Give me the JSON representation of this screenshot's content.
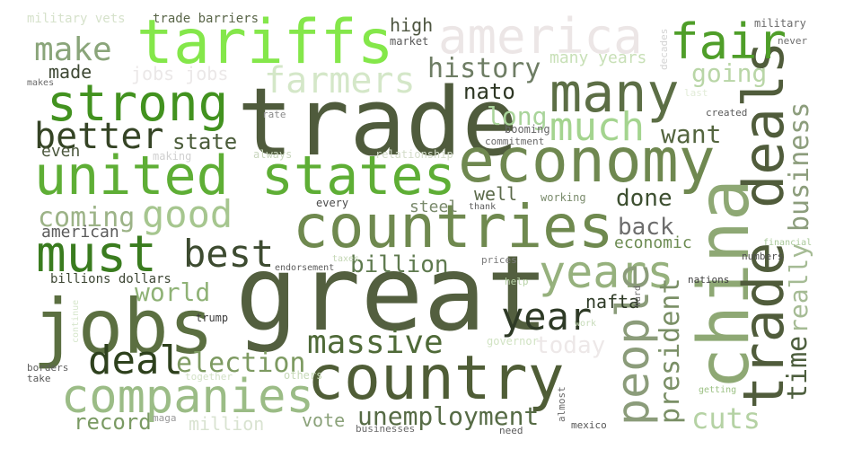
{
  "words": [
    {
      "text": "great",
      "color": "#535f3f"
    },
    {
      "text": "trade",
      "color": "#4f5b3c"
    },
    {
      "text": "country",
      "color": "#4f5d36"
    },
    {
      "text": "countries",
      "color": "#6f894f"
    },
    {
      "text": "economy",
      "color": "#6f8850"
    },
    {
      "text": "tariffs",
      "color": "#84e74a"
    },
    {
      "text": "united states",
      "color": "#5eae35"
    },
    {
      "text": "america",
      "color": "#ece6e6"
    },
    {
      "text": "jobs",
      "color": "#5b6f41"
    },
    {
      "text": "china",
      "color": "#8ea874"
    },
    {
      "text": "trade deals",
      "color": "#505c3b"
    },
    {
      "text": "many",
      "color": "#5c6e45"
    },
    {
      "text": "companies",
      "color": "#9bbc86"
    },
    {
      "text": "strong",
      "color": "#42921f"
    },
    {
      "text": "fair",
      "color": "#4f9e29"
    },
    {
      "text": "must",
      "color": "#3a7c1f"
    },
    {
      "text": "years",
      "color": "#96b17d"
    },
    {
      "text": "people",
      "color": "#8b9c7a"
    },
    {
      "text": "good",
      "color": "#a6c68f"
    },
    {
      "text": "much",
      "color": "#a4d48f"
    },
    {
      "text": "deal",
      "color": "#2e411d"
    },
    {
      "text": "best",
      "color": "#3d4b30"
    },
    {
      "text": "year",
      "color": "#2e3a26"
    },
    {
      "text": "massive",
      "color": "#4f6a38"
    },
    {
      "text": "farmers",
      "color": "#d4e7c8"
    },
    {
      "text": "better",
      "color": "#354425"
    },
    {
      "text": "make",
      "color": "#8aa57a"
    },
    {
      "text": "history",
      "color": "#6e7d64"
    },
    {
      "text": "business",
      "color": "#8c9d7c"
    },
    {
      "text": "president",
      "color": "#7a8f66"
    },
    {
      "text": "election",
      "color": "#7d9a61"
    },
    {
      "text": "unemployment",
      "color": "#566b45"
    },
    {
      "text": "time",
      "color": "#4d5e3e"
    },
    {
      "text": "really",
      "color": "#a5bb94"
    },
    {
      "text": "cuts",
      "color": "#b5d2a4"
    },
    {
      "text": "world",
      "color": "#8fb276"
    },
    {
      "text": "billion",
      "color": "#5f7a4f"
    },
    {
      "text": "coming",
      "color": "#9cb387"
    },
    {
      "text": "going",
      "color": "#b9d6a7"
    },
    {
      "text": "long",
      "color": "#a9d49a"
    },
    {
      "text": "want",
      "color": "#54653f"
    },
    {
      "text": "state",
      "color": "#4b5c3a"
    },
    {
      "text": "done",
      "color": "#3d4f30"
    },
    {
      "text": "back",
      "color": "#6d6d6d"
    },
    {
      "text": "nato",
      "color": "#2d3623"
    },
    {
      "text": "today",
      "color": "#ede8e8"
    },
    {
      "text": "record",
      "color": "#7a9a63"
    },
    {
      "text": "vote",
      "color": "#8ba27a"
    },
    {
      "text": "million",
      "color": "#d9e3d1"
    },
    {
      "text": "many years",
      "color": "#c8e0b7"
    },
    {
      "text": "high",
      "color": "#4d5540"
    },
    {
      "text": "american",
      "color": "#5b5b5b"
    },
    {
      "text": "made",
      "color": "#3e4834"
    },
    {
      "text": "jobs jobs",
      "color": "#ebe8e8"
    },
    {
      "text": "economic",
      "color": "#6d8c53"
    },
    {
      "text": "nafta",
      "color": "#2e3a26"
    },
    {
      "text": "well",
      "color": "#5b6a4a"
    },
    {
      "text": "steel",
      "color": "#7a8a6c"
    },
    {
      "text": "even",
      "color": "#4e5a40"
    },
    {
      "text": "trade barriers",
      "color": "#5a6649"
    },
    {
      "text": "military vets",
      "color": "#d6e2cb"
    },
    {
      "text": "military",
      "color": "#6b6b6b"
    },
    {
      "text": "market",
      "color": "#595959"
    },
    {
      "text": "billions dollars",
      "color": "#3d4634"
    },
    {
      "text": "booming",
      "color": "#666666"
    },
    {
      "text": "commitment",
      "color": "#6a6a6a"
    },
    {
      "text": "created",
      "color": "#5a5a5a"
    },
    {
      "text": "relationship",
      "color": "#d3dcc9"
    },
    {
      "text": "always",
      "color": "#c9d6be"
    },
    {
      "text": "making",
      "color": "#d0d0d0"
    },
    {
      "text": "rate",
      "color": "#8a8a8a"
    },
    {
      "text": "makes",
      "color": "#6a6a6a"
    },
    {
      "text": "never",
      "color": "#6e6e6e"
    },
    {
      "text": "decades",
      "color": "#d3d3d3"
    },
    {
      "text": "last",
      "color": "#e2ecd8"
    },
    {
      "text": "every",
      "color": "#4a4a4a"
    },
    {
      "text": "thank",
      "color": "#5c5c5c"
    },
    {
      "text": "working",
      "color": "#7a8b6c"
    },
    {
      "text": "financial",
      "color": "#a9c99a"
    },
    {
      "text": "taxes",
      "color": "#c3d6b3"
    },
    {
      "text": "prices",
      "color": "#7b7b7b"
    },
    {
      "text": "endorsement",
      "color": "#5d5d5d"
    },
    {
      "text": "numbers",
      "color": "#4e4e4e"
    },
    {
      "text": "help",
      "color": "#b8d3a7"
    },
    {
      "text": "hard",
      "color": "#666666"
    },
    {
      "text": "nations",
      "color": "#3e3e3e"
    },
    {
      "text": "trump",
      "color": "#3c3c3c"
    },
    {
      "text": "work",
      "color": "#c6dbb9"
    },
    {
      "text": "governor",
      "color": "#d1e3c3"
    },
    {
      "text": "continue",
      "color": "#d6e6cc"
    },
    {
      "text": "borders",
      "color": "#5f5f5f"
    },
    {
      "text": "take",
      "color": "#565656"
    },
    {
      "text": "together",
      "color": "#d2e1c6"
    },
    {
      "text": "others",
      "color": "#c6d9b7"
    },
    {
      "text": "almost",
      "color": "#6a6a6a"
    },
    {
      "text": "getting",
      "color": "#9cc184"
    },
    {
      "text": "maga",
      "color": "#9a9a9a"
    },
    {
      "text": "businesses",
      "color": "#6a6a6a"
    },
    {
      "text": "need",
      "color": "#5c5c5c"
    },
    {
      "text": "mexico",
      "color": "#565656"
    }
  ]
}
